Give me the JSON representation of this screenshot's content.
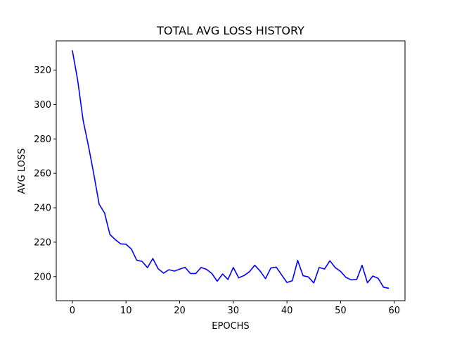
{
  "chart_data": {
    "type": "line",
    "title": "TOTAL AVG LOSS HISTORY",
    "xlabel": "EPOCHS",
    "ylabel": "AVG LOSS",
    "xlim": [
      -3,
      62
    ],
    "ylim": [
      186,
      337
    ],
    "xticks": [
      0,
      10,
      20,
      30,
      40,
      50,
      60
    ],
    "yticks": [
      200,
      220,
      240,
      260,
      280,
      300,
      320
    ],
    "grid": false,
    "legend": "none",
    "series": [
      {
        "color": "#0000ff",
        "x": [
          0,
          1,
          2,
          3,
          4,
          5,
          6,
          7,
          8,
          9,
          10,
          11,
          12,
          13,
          14,
          15,
          16,
          17,
          18,
          19,
          20,
          21,
          22,
          23,
          24,
          25,
          26,
          27,
          28,
          29,
          30,
          31,
          32,
          33,
          34,
          35,
          36,
          37,
          38,
          39,
          40,
          41,
          42,
          43,
          44,
          45,
          46,
          47,
          48,
          49,
          50,
          51,
          52,
          53,
          54,
          55,
          56,
          57,
          58,
          59
        ],
        "values": [
          331.5,
          314,
          291,
          276,
          259.5,
          242,
          237,
          224.5,
          221.5,
          219,
          218.8,
          216,
          209.5,
          208.8,
          205.2,
          210.5,
          204.5,
          202,
          204,
          203.2,
          204.3,
          205.4,
          201.8,
          201.8,
          205.3,
          204.2,
          201.8,
          197.3,
          201.5,
          198.3,
          205.3,
          199.3,
          200.6,
          202.8,
          206.6,
          203.2,
          198.8,
          205,
          205.5,
          201,
          196.6,
          197.6,
          209.4,
          200.5,
          199.8,
          196.3,
          205.3,
          204.4,
          209.2,
          205.2,
          203,
          199.5,
          198.1,
          198.3,
          206.6,
          196.4,
          200.3,
          199,
          193.8,
          193.2
        ]
      }
    ]
  }
}
